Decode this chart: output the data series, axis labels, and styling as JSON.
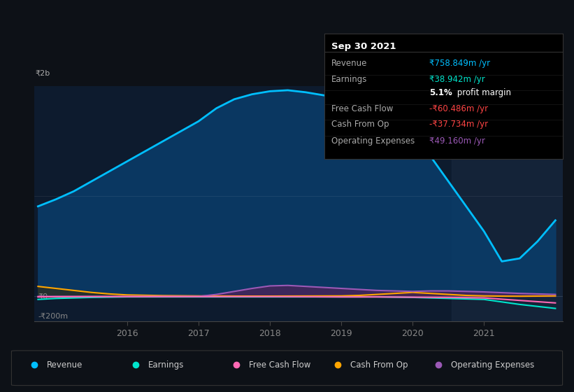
{
  "bg_color": "#0d1117",
  "plot_bg_color": "#0d1b2e",
  "highlight_bg_color": "#1a2a40",
  "y_label_2b": "₹2b",
  "y_label_0": "₹0",
  "y_label_neg200": "-₹200m",
  "x_ticks": [
    2016,
    2017,
    2018,
    2019,
    2020,
    2021
  ],
  "ylim": [
    -250,
    2100
  ],
  "xlim_start": 2014.7,
  "xlim_end": 2022.1,
  "highlight_start": 2020.55,
  "revenue": {
    "x": [
      2014.75,
      2015.0,
      2015.25,
      2015.5,
      2015.75,
      2016.0,
      2016.25,
      2016.5,
      2016.75,
      2017.0,
      2017.25,
      2017.5,
      2017.75,
      2018.0,
      2018.25,
      2018.5,
      2018.75,
      2019.0,
      2019.25,
      2019.5,
      2019.75,
      2020.0,
      2020.25,
      2020.5,
      2020.75,
      2021.0,
      2021.25,
      2021.5,
      2021.75,
      2022.0
    ],
    "y": [
      900,
      970,
      1050,
      1150,
      1250,
      1350,
      1450,
      1550,
      1650,
      1750,
      1880,
      1970,
      2020,
      2050,
      2060,
      2040,
      2010,
      1980,
      1950,
      1900,
      1800,
      1600,
      1400,
      1150,
      900,
      650,
      350,
      380,
      550,
      760
    ],
    "color": "#00bfff",
    "fill_color": "#0a3d6b",
    "linewidth": 2.0,
    "label": "Revenue"
  },
  "earnings": {
    "x": [
      2014.75,
      2015.0,
      2015.5,
      2016.0,
      2016.5,
      2017.0,
      2017.5,
      2018.0,
      2018.5,
      2019.0,
      2019.5,
      2020.0,
      2020.5,
      2021.0,
      2021.5,
      2022.0
    ],
    "y": [
      -30,
      -20,
      -10,
      -5,
      -5,
      -5,
      -5,
      -5,
      -5,
      -5,
      -5,
      -10,
      -20,
      -30,
      -80,
      -120
    ],
    "color": "#00e5cc",
    "linewidth": 1.5,
    "label": "Earnings"
  },
  "free_cash_flow": {
    "x": [
      2014.75,
      2015.0,
      2015.5,
      2016.0,
      2016.5,
      2017.0,
      2017.5,
      2018.0,
      2018.5,
      2019.0,
      2019.5,
      2020.0,
      2020.5,
      2021.0,
      2021.5,
      2022.0
    ],
    "y": [
      -5,
      -3,
      -2,
      -2,
      -2,
      -2,
      -2,
      -2,
      -3,
      -5,
      -5,
      -8,
      -10,
      -15,
      -40,
      -65
    ],
    "color": "#ff69b4",
    "linewidth": 1.5,
    "label": "Free Cash Flow"
  },
  "cash_from_op": {
    "x": [
      2014.75,
      2015.0,
      2015.25,
      2015.5,
      2015.75,
      2016.0,
      2016.5,
      2017.0,
      2017.5,
      2018.0,
      2018.5,
      2019.0,
      2019.25,
      2019.5,
      2019.75,
      2020.0,
      2020.25,
      2020.5,
      2020.75,
      2021.0,
      2021.25,
      2021.5,
      2022.0
    ],
    "y": [
      100,
      80,
      60,
      40,
      25,
      15,
      8,
      5,
      3,
      3,
      4,
      5,
      10,
      20,
      30,
      40,
      30,
      20,
      10,
      5,
      3,
      2,
      5
    ],
    "color": "#ffa500",
    "linewidth": 1.5,
    "label": "Cash From Op"
  },
  "operating_expenses": {
    "x": [
      2014.75,
      2015.0,
      2016.0,
      2017.0,
      2017.25,
      2017.5,
      2017.75,
      2018.0,
      2018.25,
      2018.5,
      2019.0,
      2019.5,
      2020.0,
      2020.25,
      2020.5,
      2020.75,
      2021.0,
      2021.5,
      2022.0
    ],
    "y": [
      0,
      0,
      0,
      0,
      20,
      50,
      80,
      105,
      110,
      100,
      80,
      60,
      50,
      55,
      55,
      50,
      45,
      30,
      20
    ],
    "color": "#9b59b6",
    "fill_color": "#4a235a",
    "linewidth": 1.5,
    "label": "Operating Expenses"
  },
  "tooltip": {
    "title": "Sep 30 2021",
    "title_color": "#ffffff",
    "rows": [
      {
        "label": "Revenue",
        "value": "₹758.849m /yr",
        "value_color": "#00bfff"
      },
      {
        "label": "Earnings",
        "value": "₹38.942m /yr",
        "value_color": "#00e5cc"
      },
      {
        "label": "",
        "value": "5.1% profit margin",
        "value_color": "#ffffff",
        "bold_part": "5.1%"
      },
      {
        "label": "Free Cash Flow",
        "value": "-₹60.486m /yr",
        "value_color": "#ff4444"
      },
      {
        "label": "Cash From Op",
        "value": "-₹37.734m /yr",
        "value_color": "#ff4444"
      },
      {
        "label": "Operating Expenses",
        "value": "₹49.160m /yr",
        "value_color": "#9b59b6"
      }
    ],
    "label_color": "#aaaaaa",
    "fontsize": 9
  },
  "legend": {
    "items": [
      {
        "label": "Revenue",
        "color": "#00bfff"
      },
      {
        "label": "Earnings",
        "color": "#00e5cc"
      },
      {
        "label": "Free Cash Flow",
        "color": "#ff69b4"
      },
      {
        "label": "Cash From Op",
        "color": "#ffa500"
      },
      {
        "label": "Operating Expenses",
        "color": "#9b59b6"
      }
    ]
  }
}
